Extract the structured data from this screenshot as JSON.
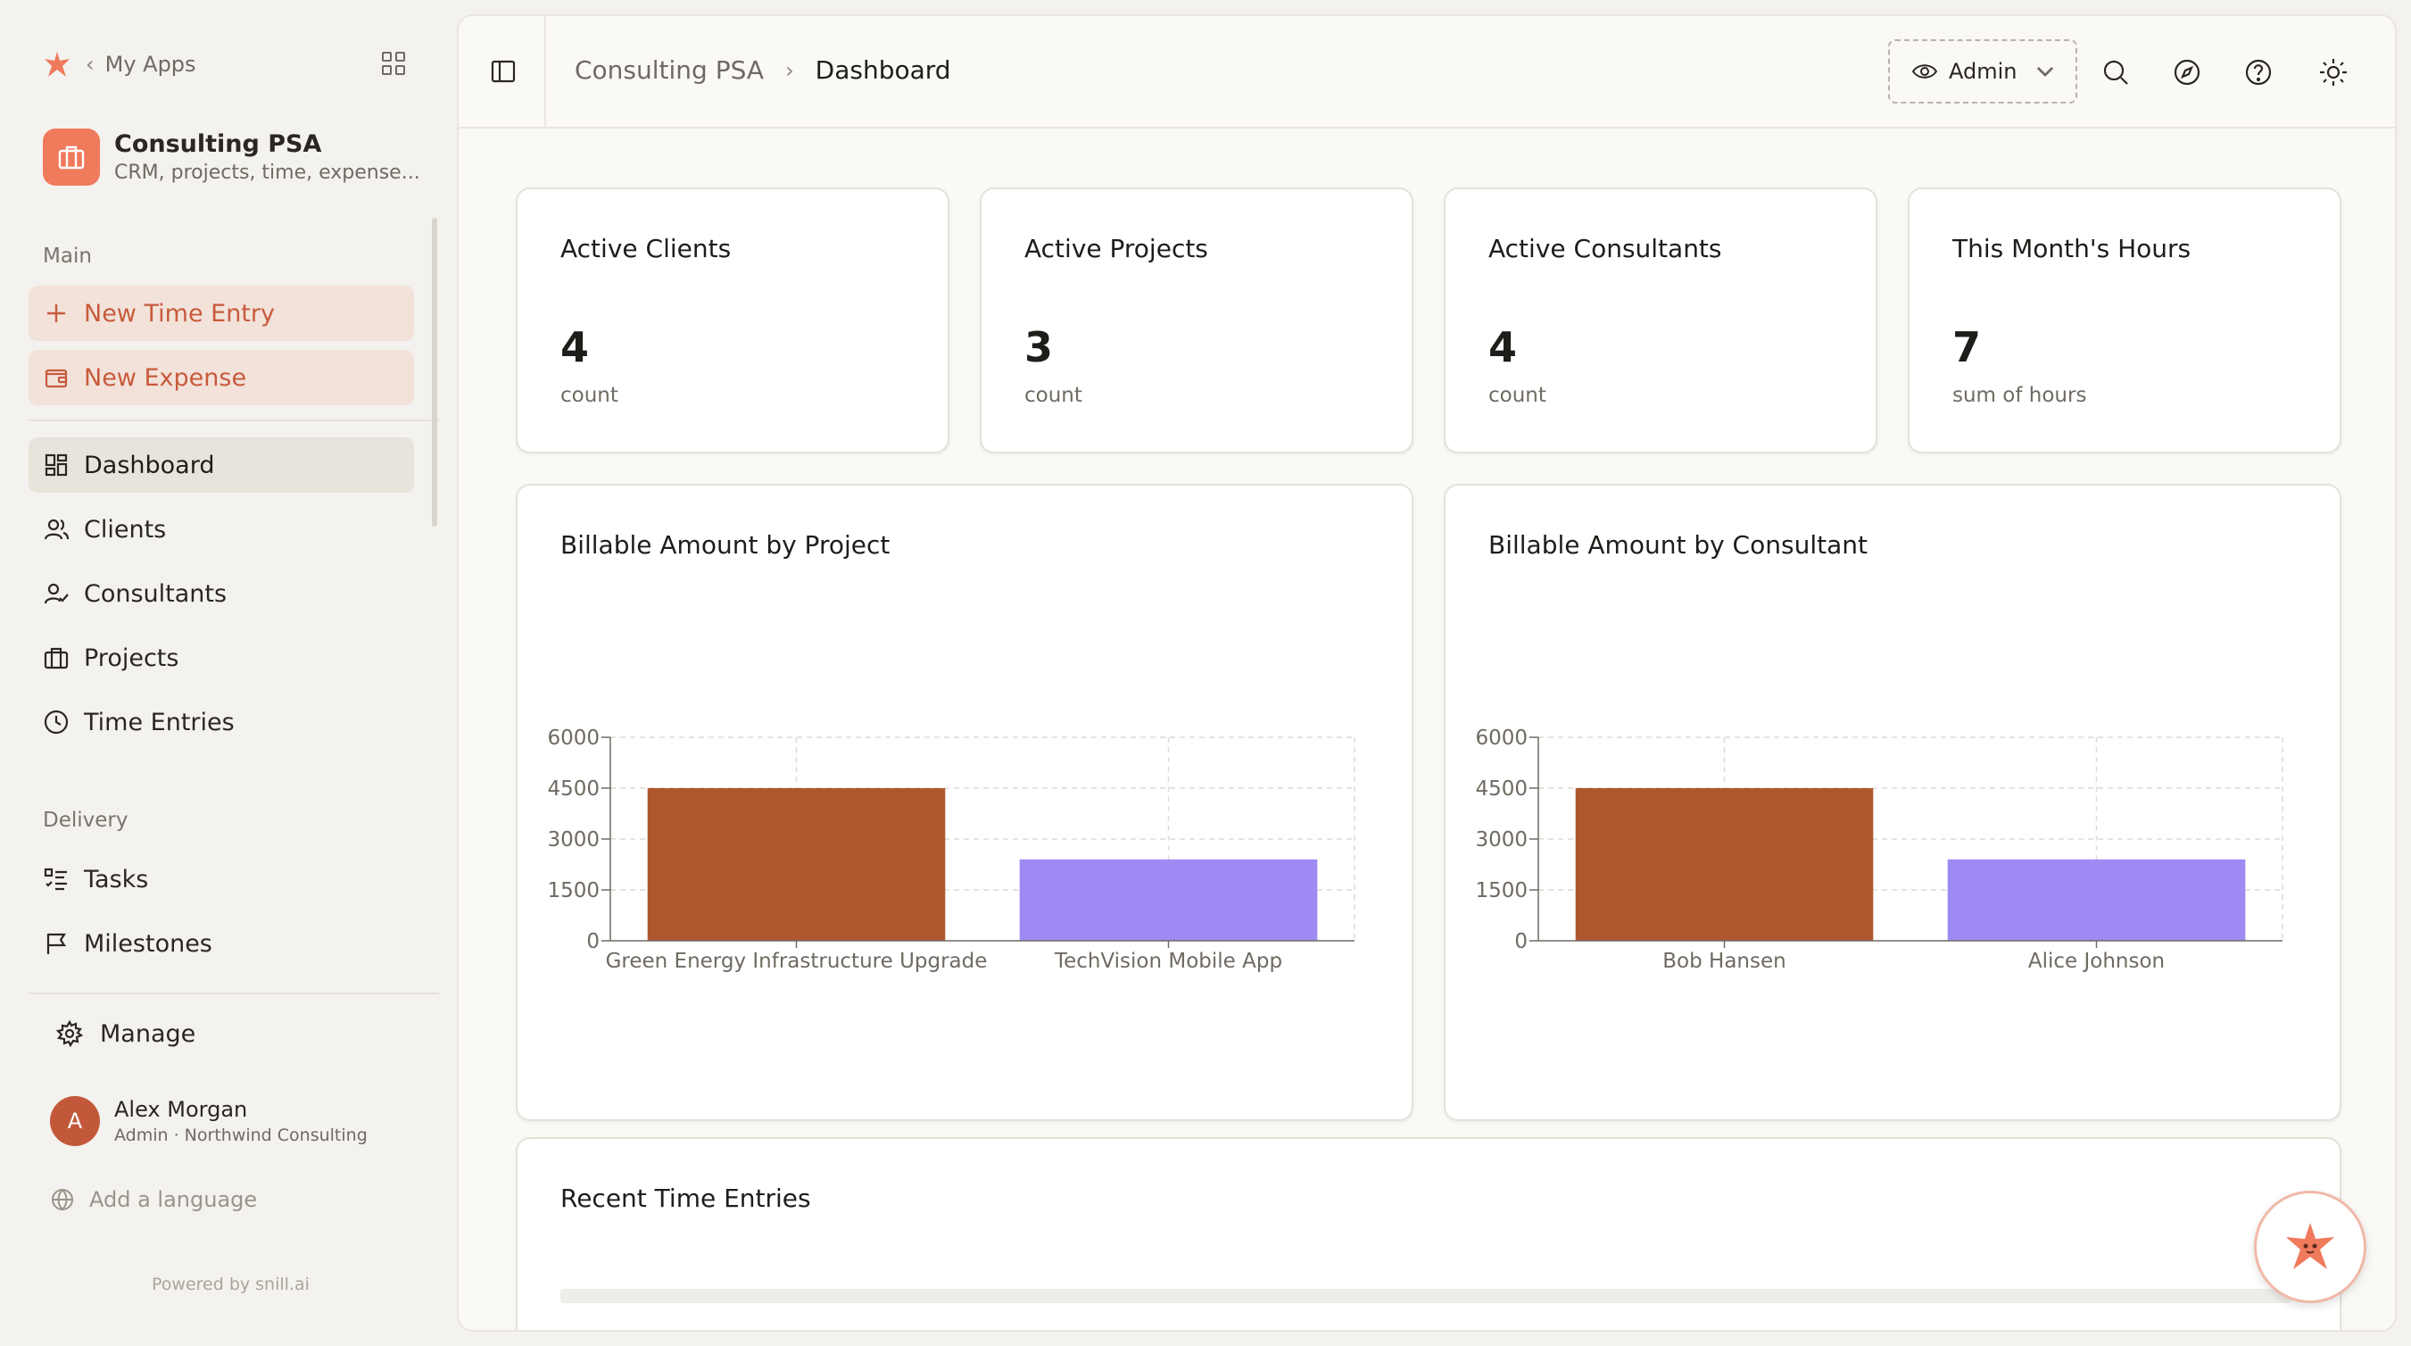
{
  "sidebar": {
    "my_apps": "My Apps",
    "app": {
      "title": "Consulting PSA",
      "subtitle": "CRM, projects, time, expense..."
    },
    "sections": {
      "main": "Main",
      "delivery": "Delivery"
    },
    "actions": [
      {
        "label": "New Time Entry",
        "icon": "plus-icon"
      },
      {
        "label": "New Expense",
        "icon": "wallet-icon"
      }
    ],
    "nav": [
      {
        "label": "Dashboard",
        "icon": "dashboard-icon",
        "active": true
      },
      {
        "label": "Clients",
        "icon": "users-icon"
      },
      {
        "label": "Consultants",
        "icon": "user-check-icon"
      },
      {
        "label": "Projects",
        "icon": "briefcase-icon"
      },
      {
        "label": "Time Entries",
        "icon": "clock-icon"
      }
    ],
    "delivery_nav": [
      {
        "label": "Tasks",
        "icon": "list-check-icon"
      },
      {
        "label": "Milestones",
        "icon": "flag-icon"
      }
    ],
    "manage": "Manage",
    "user": {
      "initial": "A",
      "name": "Alex Morgan",
      "role": "Admin · Northwind Consulting"
    },
    "add_language": "Add a language",
    "powered_by": "Powered by snill.ai"
  },
  "header": {
    "breadcrumb": [
      "Consulting PSA",
      "Dashboard"
    ],
    "role": "Admin"
  },
  "kpis": [
    {
      "title": "Active Clients",
      "value": "4",
      "unit": "count"
    },
    {
      "title": "Active Projects",
      "value": "3",
      "unit": "count"
    },
    {
      "title": "Active Consultants",
      "value": "4",
      "unit": "count"
    },
    {
      "title": "This Month's Hours",
      "value": "7",
      "unit": "sum of hours"
    }
  ],
  "colors": {
    "accent": "#c85a3c",
    "bar1": "#b0562f",
    "bar2": "#9e8af2",
    "brand": "#f07a5c"
  },
  "chart_data": [
    {
      "type": "bar",
      "title": "Billable Amount by Project",
      "categories": [
        "Green Energy Infrastructure Upgrade",
        "TechVision Mobile App"
      ],
      "values": [
        4500,
        2400
      ],
      "ylim": [
        0,
        6000
      ],
      "yticks": [
        0,
        1500,
        3000,
        4500,
        6000
      ],
      "grid": true
    },
    {
      "type": "bar",
      "title": "Billable Amount by Consultant",
      "categories": [
        "Bob Hansen",
        "Alice Johnson"
      ],
      "values": [
        4500,
        2400
      ],
      "ylim": [
        0,
        6000
      ],
      "yticks": [
        0,
        1500,
        3000,
        4500,
        6000
      ],
      "grid": true
    }
  ],
  "recent": {
    "title": "Recent Time Entries"
  }
}
